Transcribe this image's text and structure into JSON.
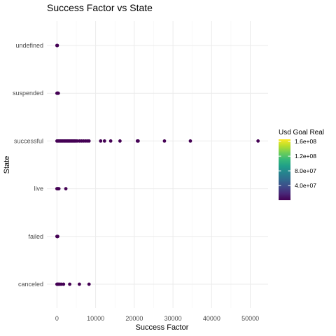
{
  "chart_data": {
    "type": "scatter",
    "title": "Success Factor vs State",
    "xlabel": "Success Factor",
    "ylabel": "State",
    "xlim": [
      -2600,
      54600
    ],
    "x_ticks": [
      0,
      10000,
      20000,
      30000,
      40000,
      50000
    ],
    "x_tick_labels": [
      "0",
      "10000",
      "20000",
      "30000",
      "40000",
      "50000"
    ],
    "categories": [
      "canceled",
      "failed",
      "live",
      "successful",
      "suspended",
      "undefined"
    ],
    "grid": true,
    "legend": {
      "title": "Usd Goal Real",
      "position": "right",
      "type": "colorbar",
      "palette": "viridis",
      "range": [
        0,
        166000000
      ],
      "ticks": [
        40000000,
        80000000,
        120000000,
        160000000
      ],
      "tick_labels": [
        "4.0e+07",
        "8.0e+07",
        "1.2e+08",
        "1.6e+08"
      ],
      "colors": [
        "#440154",
        "#482878",
        "#3E4A89",
        "#31688E",
        "#26828E",
        "#1F9E89",
        "#35B779",
        "#6DCD59",
        "#B4DE2C",
        "#FDE725"
      ]
    },
    "point_color": "#440154",
    "series": [
      {
        "category": "canceled",
        "x": [
          0,
          200,
          400,
          700,
          1100,
          1700,
          3300,
          5800,
          8300
        ]
      },
      {
        "category": "failed",
        "x": [
          0,
          50,
          100,
          150,
          200
        ]
      },
      {
        "category": "live",
        "x": [
          0,
          150,
          300,
          500,
          2300
        ]
      },
      {
        "category": "successful",
        "x": [
          0,
          300,
          600,
          900,
          1200,
          1500,
          1800,
          2100,
          2400,
          2700,
          3000,
          3300,
          3600,
          3900,
          4200,
          4500,
          4800,
          5200,
          5800,
          6300,
          6800,
          7300,
          7800,
          8300,
          11300,
          12300,
          13900,
          16300,
          20800,
          21000,
          27800,
          34500,
          52000
        ]
      },
      {
        "category": "suspended",
        "x": [
          0,
          100,
          200,
          350
        ]
      },
      {
        "category": "undefined",
        "x": [
          0,
          50,
          100
        ]
      }
    ]
  }
}
